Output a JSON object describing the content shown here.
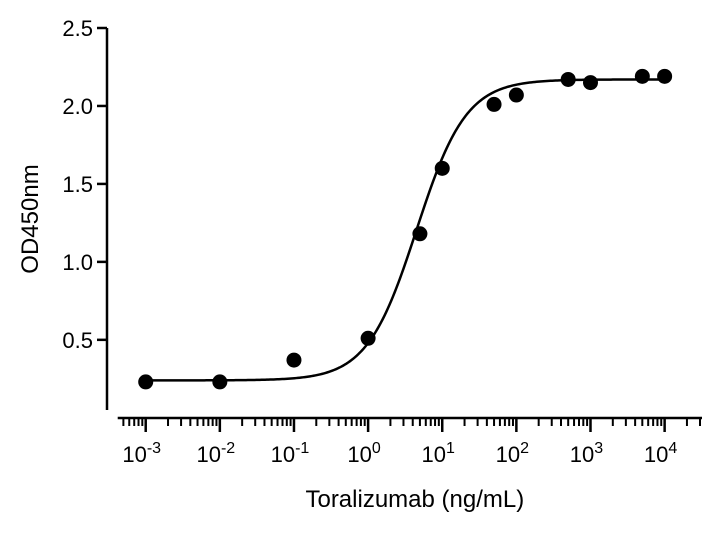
{
  "chart_data": {
    "type": "scatter",
    "title": "",
    "xlabel": "Toralizumab (ng/mL)",
    "ylabel": "OD450nm",
    "x_scale": "log",
    "xlim": [
      0.00045,
      30000
    ],
    "ylim": [
      0.05,
      2.5
    ],
    "x_ticks": [
      {
        "value": 0.001,
        "base": "10",
        "exp": "-3"
      },
      {
        "value": 0.01,
        "base": "10",
        "exp": "-2"
      },
      {
        "value": 0.1,
        "base": "10",
        "exp": "-1"
      },
      {
        "value": 1,
        "base": "10",
        "exp": "0"
      },
      {
        "value": 10,
        "base": "10",
        "exp": "1"
      },
      {
        "value": 100,
        "base": "10",
        "exp": "2"
      },
      {
        "value": 1000,
        "base": "10",
        "exp": "3"
      },
      {
        "value": 10000,
        "base": "10",
        "exp": "4"
      }
    ],
    "y_ticks": [
      {
        "value": 0.5,
        "label": "0.5"
      },
      {
        "value": 1.0,
        "label": "1.0"
      },
      {
        "value": 1.5,
        "label": "1.5"
      },
      {
        "value": 2.0,
        "label": "2.0"
      },
      {
        "value": 2.5,
        "label": "2.5"
      }
    ],
    "grid": false,
    "series": [
      {
        "points": [
          {
            "x": 0.001,
            "y": 0.23
          },
          {
            "x": 0.01,
            "y": 0.23
          },
          {
            "x": 0.1,
            "y": 0.37
          },
          {
            "x": 1,
            "y": 0.51
          },
          {
            "x": 5,
            "y": 1.18
          },
          {
            "x": 10,
            "y": 1.6
          },
          {
            "x": 50,
            "y": 2.01
          },
          {
            "x": 100,
            "y": 2.07
          },
          {
            "x": 500,
            "y": 2.17
          },
          {
            "x": 1000,
            "y": 2.15
          },
          {
            "x": 5000,
            "y": 2.19
          },
          {
            "x": 10000,
            "y": 2.19
          }
        ],
        "fit": {
          "model": "4PL",
          "bottom": 0.24,
          "top": 2.17,
          "ec50": 4.5,
          "hill": 1.3
        }
      }
    ],
    "style": {
      "point_color": "#000000",
      "line_color": "#000000",
      "axis_color": "#000000"
    }
  }
}
